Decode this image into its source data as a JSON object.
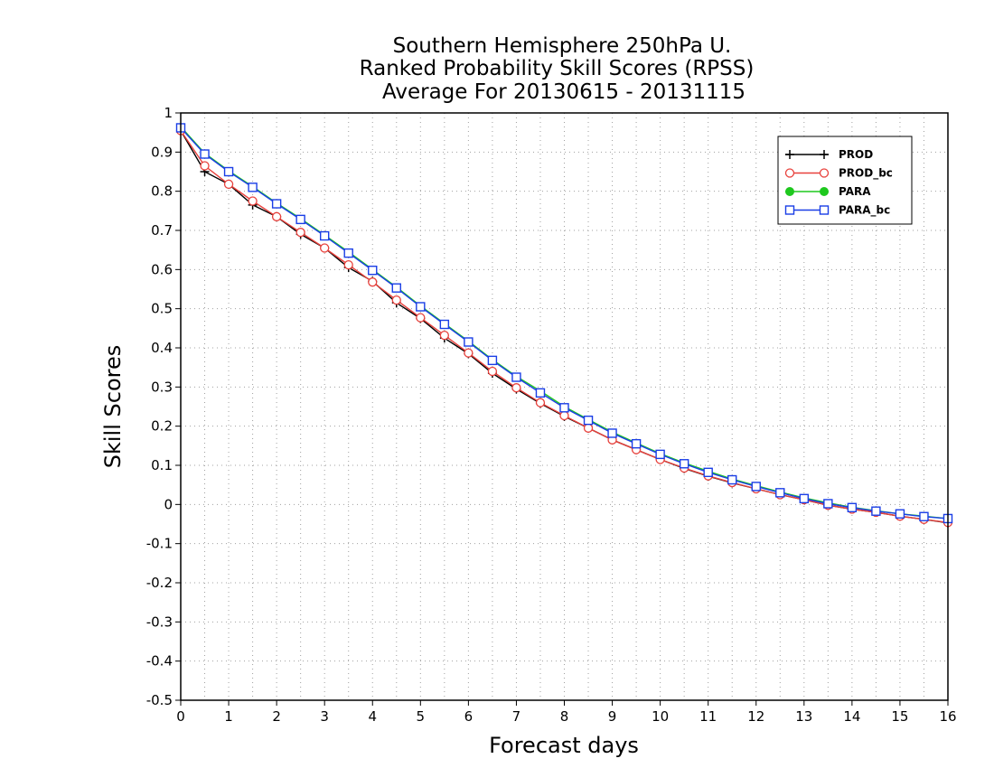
{
  "chart_data": {
    "type": "line",
    "title_lines": [
      "Southern Hemisphere 250hPa U.",
      "Ranked Probability Skill Scores (RPSS)",
      "Average For 20130615 - 20131115"
    ],
    "xlabel": "Forecast days",
    "ylabel": "Skill Scores",
    "xlim": [
      0,
      16
    ],
    "ylim": [
      -0.5,
      1
    ],
    "xticks": [
      "0",
      "1",
      "2",
      "3",
      "4",
      "5",
      "6",
      "7",
      "8",
      "9",
      "10",
      "11",
      "12",
      "13",
      "14",
      "15",
      "16"
    ],
    "yticks": [
      "-0.5",
      "-0.4",
      "-0.3",
      "-0.2",
      "-0.1",
      "0",
      "0.1",
      "0.2",
      "0.3",
      "0.4",
      "0.5",
      "0.6",
      "0.7",
      "0.8",
      "0.9",
      "1"
    ],
    "grid": true,
    "legend_position": "top-right",
    "x": [
      0,
      0.5,
      1,
      1.5,
      2,
      2.5,
      3,
      3.5,
      4,
      4.5,
      5,
      5.5,
      6,
      6.5,
      7,
      7.5,
      8,
      8.5,
      9,
      9.5,
      10,
      10.5,
      11,
      11.5,
      12,
      12.5,
      13,
      13.5,
      14,
      14.5,
      15,
      15.5,
      16
    ],
    "series": [
      {
        "name": "PROD",
        "color": "#000000",
        "marker": "plus",
        "values": [
          0.955,
          0.85,
          0.818,
          0.765,
          0.735,
          0.69,
          0.655,
          0.605,
          0.57,
          0.515,
          0.475,
          0.425,
          0.385,
          0.335,
          0.295,
          0.258,
          0.225,
          0.195,
          0.165,
          0.14,
          0.115,
          0.092,
          0.072,
          0.055,
          0.04,
          0.025,
          0.012,
          -0.002,
          -0.012,
          -0.02,
          -0.03,
          -0.038,
          -0.047
        ]
      },
      {
        "name": "PROD_bc",
        "color": "#e8413c",
        "marker": "circle",
        "values": [
          0.955,
          0.865,
          0.818,
          0.775,
          0.735,
          0.695,
          0.655,
          0.612,
          0.568,
          0.522,
          0.477,
          0.432,
          0.387,
          0.34,
          0.298,
          0.26,
          0.227,
          0.195,
          0.165,
          0.14,
          0.115,
          0.093,
          0.073,
          0.056,
          0.04,
          0.025,
          0.012,
          -0.002,
          -0.012,
          -0.02,
          -0.03,
          -0.038,
          -0.046
        ]
      },
      {
        "name": "PARA",
        "color": "#1ec81e",
        "marker": "dot",
        "values": [
          0.965,
          0.897,
          0.852,
          0.812,
          0.77,
          0.73,
          0.688,
          0.645,
          0.6,
          0.555,
          0.507,
          0.462,
          0.417,
          0.37,
          0.327,
          0.29,
          0.25,
          0.217,
          0.185,
          0.157,
          0.13,
          0.106,
          0.085,
          0.065,
          0.048,
          0.032,
          0.017,
          0.004,
          -0.007,
          -0.016,
          -0.024,
          -0.03,
          -0.036
        ]
      },
      {
        "name": "PARA_bc",
        "color": "#1a3ee6",
        "marker": "square",
        "values": [
          0.962,
          0.895,
          0.85,
          0.81,
          0.768,
          0.728,
          0.686,
          0.642,
          0.598,
          0.553,
          0.505,
          0.46,
          0.415,
          0.368,
          0.325,
          0.285,
          0.247,
          0.215,
          0.182,
          0.155,
          0.128,
          0.104,
          0.082,
          0.063,
          0.046,
          0.03,
          0.015,
          0.002,
          -0.008,
          -0.017,
          -0.024,
          -0.031,
          -0.036
        ]
      }
    ]
  }
}
